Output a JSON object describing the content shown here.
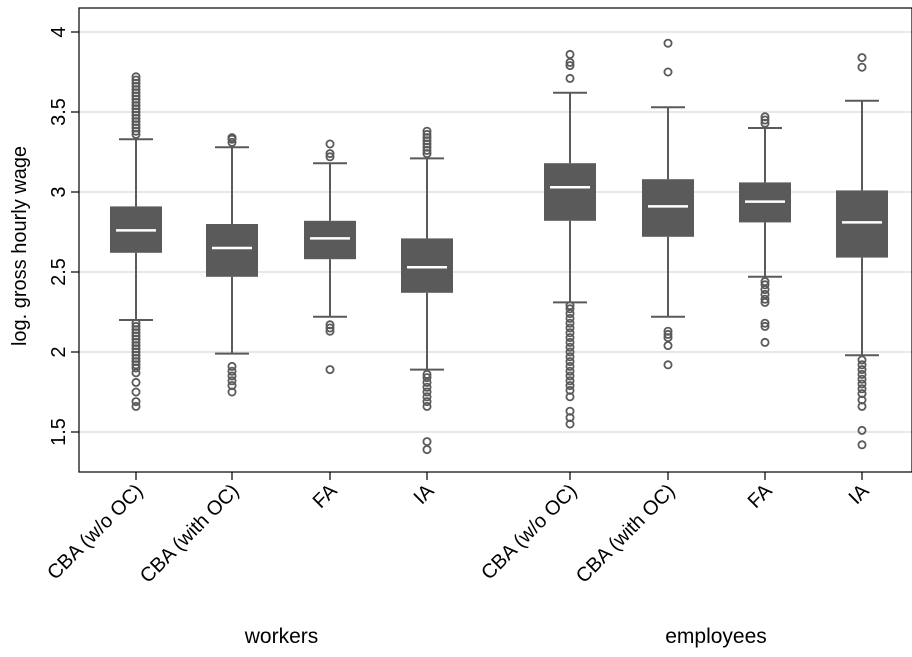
{
  "chart_data": {
    "type": "boxplot",
    "ylabel": "log. gross hourly wage",
    "ylim": [
      1.25,
      4.15
    ],
    "yticks": [
      1.5,
      2,
      2.5,
      3,
      3.5,
      4
    ],
    "ytick_labels": [
      "1.5",
      "2",
      "2.5",
      "3",
      "3.5",
      "4"
    ],
    "grid": true,
    "colors": {
      "box": "#5a5a5a",
      "median": "#ffffff",
      "outlier": "#5a5a5a",
      "grid": "#d9d9d9"
    },
    "groups": [
      {
        "label": "workers",
        "categories": [
          "CBA (w/o OC)",
          "CBA (with OC)",
          "FA",
          "IA"
        ]
      },
      {
        "label": "employees",
        "categories": [
          "CBA (w/o OC)",
          "CBA (with OC)",
          "FA",
          "IA"
        ]
      }
    ],
    "boxes": [
      {
        "group": "workers",
        "category": "CBA (w/o OC)",
        "whisker_low": 2.2,
        "q1": 2.62,
        "median": 2.76,
        "q3": 2.91,
        "whisker_high": 3.33,
        "outliers": [
          1.66,
          1.69,
          1.75,
          1.81,
          1.87,
          1.9,
          1.92,
          1.94,
          1.96,
          1.98,
          2.0,
          2.02,
          2.04,
          2.06,
          2.08,
          2.1,
          2.12,
          2.14,
          2.16,
          2.18,
          3.36,
          3.38,
          3.4,
          3.42,
          3.44,
          3.46,
          3.48,
          3.5,
          3.52,
          3.54,
          3.56,
          3.58,
          3.6,
          3.62,
          3.64,
          3.66,
          3.68,
          3.7,
          3.72
        ]
      },
      {
        "group": "workers",
        "category": "CBA (with OC)",
        "whisker_low": 1.99,
        "q1": 2.47,
        "median": 2.65,
        "q3": 2.8,
        "whisker_high": 3.28,
        "outliers": [
          1.75,
          1.79,
          1.82,
          1.85,
          1.88,
          1.91,
          3.31,
          3.33,
          3.34
        ]
      },
      {
        "group": "workers",
        "category": "FA",
        "whisker_low": 2.22,
        "q1": 2.58,
        "median": 2.71,
        "q3": 2.82,
        "whisker_high": 3.18,
        "outliers": [
          1.89,
          2.13,
          2.15,
          2.17,
          3.22,
          3.24,
          3.3
        ]
      },
      {
        "group": "workers",
        "category": "IA",
        "whisker_low": 1.89,
        "q1": 2.37,
        "median": 2.53,
        "q3": 2.71,
        "whisker_high": 3.21,
        "outliers": [
          1.39,
          1.44,
          1.66,
          1.69,
          1.72,
          1.75,
          1.78,
          1.81,
          1.84,
          1.86,
          3.24,
          3.26,
          3.28,
          3.3,
          3.32,
          3.34,
          3.36,
          3.38
        ]
      },
      {
        "group": "employees",
        "category": "CBA (w/o OC)",
        "whisker_low": 2.31,
        "q1": 2.82,
        "median": 3.03,
        "q3": 3.18,
        "whisker_high": 3.62,
        "outliers": [
          1.55,
          1.59,
          1.63,
          1.72,
          1.76,
          1.79,
          1.82,
          1.85,
          1.88,
          1.91,
          1.94,
          1.97,
          2.0,
          2.03,
          2.06,
          2.09,
          2.12,
          2.15,
          2.18,
          2.21,
          2.24,
          2.27,
          2.29,
          3.71,
          3.79,
          3.81,
          3.86
        ]
      },
      {
        "group": "employees",
        "category": "CBA (with OC)",
        "whisker_low": 2.22,
        "q1": 2.72,
        "median": 2.91,
        "q3": 3.08,
        "whisker_high": 3.53,
        "outliers": [
          1.92,
          2.04,
          2.09,
          2.11,
          2.13,
          3.75,
          3.93
        ]
      },
      {
        "group": "employees",
        "category": "FA",
        "whisker_low": 2.47,
        "q1": 2.81,
        "median": 2.94,
        "q3": 3.06,
        "whisker_high": 3.4,
        "outliers": [
          2.06,
          2.16,
          2.18,
          2.31,
          2.33,
          2.36,
          2.39,
          2.42,
          2.44,
          3.43,
          3.45,
          3.47
        ]
      },
      {
        "group": "employees",
        "category": "IA",
        "whisker_low": 1.98,
        "q1": 2.59,
        "median": 2.81,
        "q3": 3.01,
        "whisker_high": 3.57,
        "outliers": [
          1.42,
          1.51,
          1.66,
          1.7,
          1.74,
          1.77,
          1.8,
          1.83,
          1.86,
          1.89,
          1.92,
          1.95,
          3.78,
          3.84
        ]
      }
    ]
  }
}
